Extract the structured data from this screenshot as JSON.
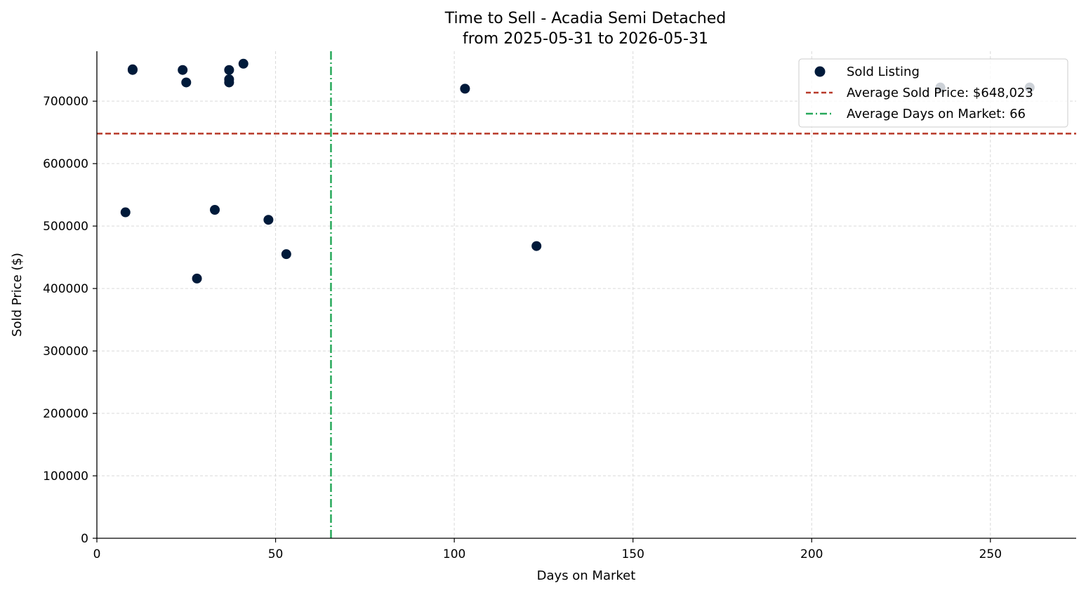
{
  "colors": {
    "points": "#001a3a",
    "avg_price_line": "#b83a2a",
    "avg_days_line": "#27a85a",
    "grid": "#d9d9d9",
    "axis": "#000000"
  },
  "chart_data": {
    "type": "scatter",
    "title": "Time to Sell - Acadia Semi Detached",
    "subtitle": "from 2025-05-31 to 2026-05-31",
    "xlabel": "Days on Market",
    "ylabel": "Sold Price ($)",
    "xlim": [
      0,
      274
    ],
    "ylim": [
      0,
      780000
    ],
    "xticks": [
      0,
      50,
      100,
      150,
      200,
      250
    ],
    "yticks": [
      0,
      100000,
      200000,
      300000,
      400000,
      500000,
      600000,
      700000
    ],
    "grid": true,
    "legend_position": "top-right",
    "series": [
      {
        "name": "Sold Listing",
        "points": [
          {
            "x": 8,
            "y": 522000
          },
          {
            "x": 10,
            "y": 750000
          },
          {
            "x": 10,
            "y": 751000
          },
          {
            "x": 24,
            "y": 750000
          },
          {
            "x": 25,
            "y": 730000
          },
          {
            "x": 28,
            "y": 416000
          },
          {
            "x": 33,
            "y": 526000
          },
          {
            "x": 37,
            "y": 750000
          },
          {
            "x": 37,
            "y": 735000
          },
          {
            "x": 37,
            "y": 730000
          },
          {
            "x": 41,
            "y": 760000
          },
          {
            "x": 48,
            "y": 510000
          },
          {
            "x": 53,
            "y": 455000
          },
          {
            "x": 103,
            "y": 720000
          },
          {
            "x": 123,
            "y": 468000
          },
          {
            "x": 236,
            "y": 722000
          },
          {
            "x": 261,
            "y": 722000
          }
        ]
      }
    ],
    "reference_lines": [
      {
        "name": "Average Sold Price: $648,023",
        "orientation": "horizontal",
        "value": 648023,
        "style": "dashed"
      },
      {
        "name": "Average Days on Market: 66",
        "orientation": "vertical",
        "value": 65.5,
        "style": "dashdot"
      }
    ]
  }
}
